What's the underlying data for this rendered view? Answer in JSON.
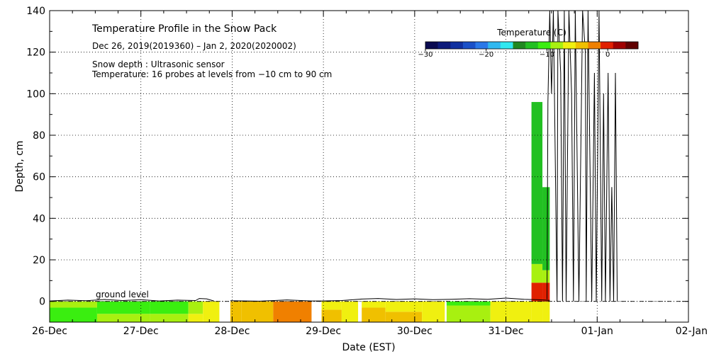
{
  "chart_data": {
    "type": "heatmap",
    "title": "Temperature Profile in the Snow Pack",
    "subtitle": "Dec 26, 2019(2019360) – Jan  2, 2020(2020002)",
    "notes": [
      "Snow depth : Ultrasonic sensor",
      "Temperature: 16 probes at levels from −10 cm to 90 cm"
    ],
    "annotation": "ground level",
    "xlabel": "Date (EST)",
    "ylabel": "Depth, cm",
    "x_tick_labels": [
      "26-Dec",
      "27-Dec",
      "28-Dec",
      "29-Dec",
      "30-Dec",
      "31-Dec",
      "01-Jan",
      "02-Jan"
    ],
    "xlim_days": [
      0,
      7
    ],
    "ylim": [
      -10,
      140
    ],
    "y_ticks": [
      0,
      20,
      40,
      60,
      80,
      100,
      120,
      140
    ],
    "grid": true,
    "colorbar": {
      "title": "Temperature (C)",
      "range": [
        -30,
        5
      ],
      "tick_values": [
        -30,
        -20,
        -10,
        0
      ],
      "tick_labels": [
        "−30",
        "−20",
        "−10",
        "0"
      ],
      "colors": [
        "#0a0a50",
        "#0d1a7a",
        "#1030a0",
        "#1a50c8",
        "#2a78e8",
        "#30b8f0",
        "#30e8f0",
        "#208820",
        "#22c022",
        "#3aee10",
        "#a8f010",
        "#f0f010",
        "#f0c000",
        "#f08000",
        "#e02000",
        "#a00000",
        "#600000"
      ]
    },
    "temperature_columns": [
      {
        "x0": 0.0,
        "x1": 0.52,
        "bands": [
          {
            "y0": -10,
            "y1": -3,
            "color": "#3aee10"
          },
          {
            "y0": -3,
            "y1": 0,
            "color": "#a8f010"
          }
        ]
      },
      {
        "x0": 0.52,
        "x1": 1.1,
        "bands": [
          {
            "y0": -10,
            "y1": -6,
            "color": "#a8f010"
          },
          {
            "y0": -6,
            "y1": 0,
            "color": "#3aee10"
          }
        ]
      },
      {
        "x0": 1.1,
        "x1": 1.52,
        "bands": [
          {
            "y0": -10,
            "y1": -6,
            "color": "#a8f010"
          },
          {
            "y0": -6,
            "y1": 0,
            "color": "#3aee10"
          }
        ]
      },
      {
        "x0": 1.52,
        "x1": 1.68,
        "bands": [
          {
            "y0": -10,
            "y1": -6,
            "color": "#f0f010"
          },
          {
            "y0": -6,
            "y1": 0,
            "color": "#a8f010"
          }
        ]
      },
      {
        "x0": 1.68,
        "x1": 1.86,
        "bands": [
          {
            "y0": -10,
            "y1": 0,
            "color": "#f0f010"
          }
        ]
      },
      {
        "x0": 1.98,
        "x1": 2.1,
        "bands": [
          {
            "y0": -10,
            "y1": 0,
            "color": "#f0c000"
          }
        ]
      },
      {
        "x0": 2.1,
        "x1": 2.45,
        "bands": [
          {
            "y0": -10,
            "y1": 0,
            "color": "#f0c000"
          }
        ]
      },
      {
        "x0": 2.45,
        "x1": 2.87,
        "bands": [
          {
            "y0": -10,
            "y1": 0,
            "color": "#f08000"
          }
        ]
      },
      {
        "x0": 2.98,
        "x1": 3.2,
        "bands": [
          {
            "y0": -10,
            "y1": -4,
            "color": "#f0c000"
          },
          {
            "y0": -4,
            "y1": 0,
            "color": "#f0f010"
          }
        ]
      },
      {
        "x0": 3.2,
        "x1": 3.38,
        "bands": [
          {
            "y0": -10,
            "y1": 0,
            "color": "#f0f010"
          }
        ]
      },
      {
        "x0": 3.42,
        "x1": 3.68,
        "bands": [
          {
            "y0": -10,
            "y1": -3,
            "color": "#f0c000"
          },
          {
            "y0": -3,
            "y1": 0,
            "color": "#f0f010"
          }
        ]
      },
      {
        "x0": 3.68,
        "x1": 4.08,
        "bands": [
          {
            "y0": -10,
            "y1": -5,
            "color": "#f0c000"
          },
          {
            "y0": -5,
            "y1": 0,
            "color": "#f0f010"
          }
        ]
      },
      {
        "x0": 4.08,
        "x1": 4.33,
        "bands": [
          {
            "y0": -10,
            "y1": 0,
            "color": "#f0f010"
          }
        ]
      },
      {
        "x0": 4.35,
        "x1": 4.83,
        "bands": [
          {
            "y0": -10,
            "y1": -2,
            "color": "#a8f010"
          },
          {
            "y0": -2,
            "y1": 0,
            "color": "#3aee10"
          }
        ]
      },
      {
        "x0": 4.83,
        "x1": 5.03,
        "bands": [
          {
            "y0": -10,
            "y1": 0,
            "color": "#f0f010"
          }
        ]
      },
      {
        "x0": 5.03,
        "x1": 5.28,
        "bands": [
          {
            "y0": -10,
            "y1": 0,
            "color": "#f0f010"
          }
        ]
      },
      {
        "x0": 5.28,
        "x1": 5.4,
        "bands": [
          {
            "y0": -10,
            "y1": 0,
            "color": "#f0f010"
          },
          {
            "y0": 0,
            "y1": 9,
            "color": "#e02000"
          },
          {
            "y0": 9,
            "y1": 18,
            "color": "#a8f010"
          },
          {
            "y0": 18,
            "y1": 96,
            "color": "#22c022"
          }
        ]
      },
      {
        "x0": 5.4,
        "x1": 5.48,
        "bands": [
          {
            "y0": -10,
            "y1": 0,
            "color": "#f0f010"
          },
          {
            "y0": 0,
            "y1": 9,
            "color": "#e02000"
          },
          {
            "y0": 9,
            "y1": 15,
            "color": "#a8f010"
          },
          {
            "y0": 15,
            "y1": 55,
            "color": "#22c022"
          }
        ]
      }
    ],
    "snow_depth_segments": [
      [
        [
          0.0,
          0.2
        ],
        [
          0.2,
          0.6
        ],
        [
          0.4,
          0.3
        ],
        [
          0.6,
          0.9
        ],
        [
          0.8,
          0.4
        ],
        [
          1.0,
          0.8
        ],
        [
          1.2,
          0.2
        ],
        [
          1.4,
          0.6
        ],
        [
          1.6,
          0.4
        ],
        [
          1.64,
          1.4
        ],
        [
          1.72,
          1.2
        ],
        [
          1.8,
          0.2
        ]
      ],
      [
        [
          1.98,
          0.3
        ],
        [
          2.3,
          0.1
        ],
        [
          2.6,
          0.7
        ],
        [
          2.87,
          0.2
        ],
        [
          2.98,
          0.2
        ],
        [
          3.2,
          0.4
        ],
        [
          3.42,
          1.1
        ],
        [
          3.6,
          1.4
        ],
        [
          3.8,
          0.9
        ],
        [
          4.0,
          1.2
        ],
        [
          4.2,
          0.8
        ],
        [
          4.4,
          1.0
        ],
        [
          4.6,
          1.3
        ],
        [
          4.8,
          1.0
        ],
        [
          5.0,
          1.6
        ],
        [
          5.2,
          1.0
        ],
        [
          5.4,
          0.7
        ],
        [
          5.48,
          0.5
        ]
      ],
      [
        [
          5.45,
          1.0
        ],
        [
          5.46,
          96
        ],
        [
          5.48,
          140
        ],
        [
          5.5,
          100
        ],
        [
          5.52,
          140
        ],
        [
          5.56,
          0
        ],
        [
          5.57,
          140
        ],
        [
          5.6,
          110
        ],
        [
          5.62,
          0
        ],
        [
          5.64,
          140
        ],
        [
          5.66,
          0
        ],
        [
          5.69,
          140
        ],
        [
          5.72,
          100
        ],
        [
          5.74,
          0
        ],
        [
          5.76,
          140
        ],
        [
          5.8,
          0
        ],
        [
          5.84,
          140
        ],
        [
          5.87,
          120
        ],
        [
          5.88,
          0
        ],
        [
          5.9,
          140
        ],
        [
          5.94,
          0
        ],
        [
          5.97,
          110
        ],
        [
          5.99,
          0
        ],
        [
          6.02,
          140
        ],
        [
          6.05,
          0
        ],
        [
          6.07,
          100
        ],
        [
          6.09,
          0
        ],
        [
          6.12,
          110
        ],
        [
          6.14,
          0
        ],
        [
          6.16,
          55
        ],
        [
          6.18,
          0
        ],
        [
          6.2,
          110
        ],
        [
          6.22,
          0
        ]
      ]
    ]
  }
}
